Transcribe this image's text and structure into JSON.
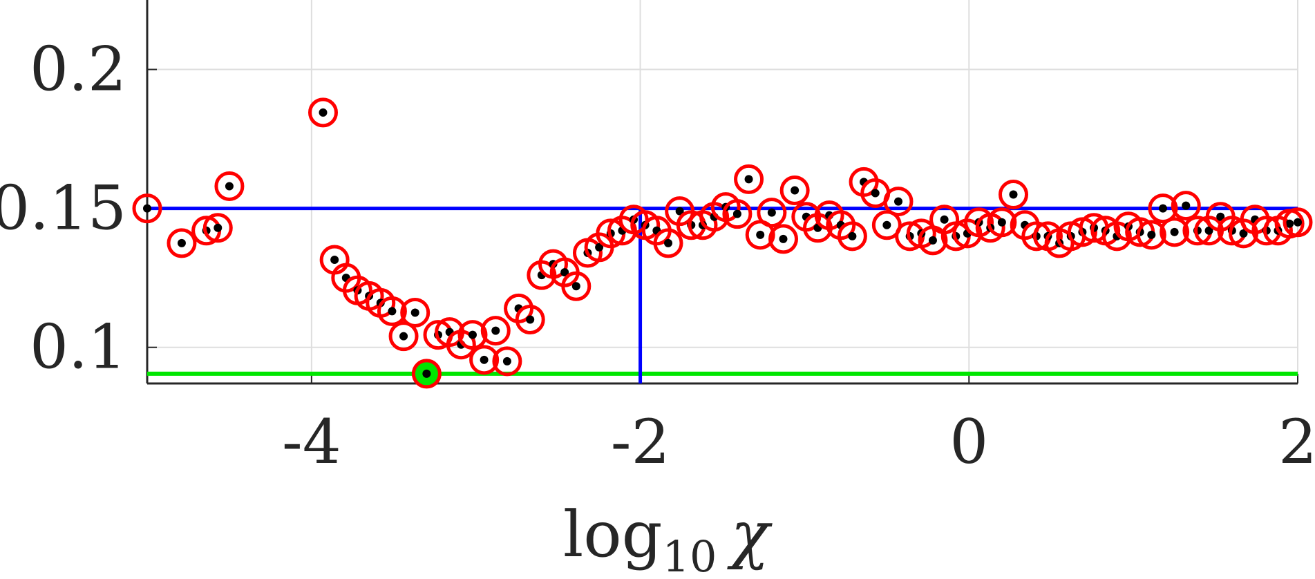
{
  "chart_data": {
    "type": "scatter",
    "xlabel": {
      "base": "log",
      "subscript": "10",
      "variable": "χ"
    },
    "xlim": [
      -5,
      2
    ],
    "ylim": [
      0.087,
      0.225
    ],
    "xticks": [
      -4,
      -2,
      0,
      2
    ],
    "xtick_labels": [
      "-4",
      "-2",
      "0",
      "2"
    ],
    "yticks": [
      0.1,
      0.15,
      0.2
    ],
    "ytick_labels": [
      "0.1",
      "0.15",
      "0.2"
    ],
    "grid": true,
    "reference_lines": {
      "blue_horizontal_y": 0.15,
      "blue_vertical_x": -2,
      "green_horizontal_y": 0.0905
    },
    "highlighted_minimum": {
      "x": -3.3,
      "y": 0.0905
    },
    "colors": {
      "marker_ring": "#ff0000",
      "marker_dot": "#000000",
      "blue_line": "#0000ff",
      "green_line": "#00e600",
      "minimum_fill": "#00e600",
      "grid": "#dedede",
      "axis": "#262626"
    },
    "points": [
      [
        -5.0,
        0.15
      ],
      [
        -4.79,
        0.1375
      ],
      [
        -4.64,
        0.142
      ],
      [
        -4.57,
        0.143
      ],
      [
        -4.5,
        0.158
      ],
      [
        -3.93,
        0.1845
      ],
      [
        -3.86,
        0.1315
      ],
      [
        -3.79,
        0.125
      ],
      [
        -3.72,
        0.1205
      ],
      [
        -3.65,
        0.1185
      ],
      [
        -3.58,
        0.116
      ],
      [
        -3.51,
        0.113
      ],
      [
        -3.44,
        0.104
      ],
      [
        -3.37,
        0.1125
      ],
      [
        -3.3,
        0.0905
      ],
      [
        -3.23,
        0.1045
      ],
      [
        -3.16,
        0.1055
      ],
      [
        -3.09,
        0.101
      ],
      [
        -3.02,
        0.1045
      ],
      [
        -2.95,
        0.0955
      ],
      [
        -2.88,
        0.106
      ],
      [
        -2.81,
        0.095
      ],
      [
        -2.74,
        0.114
      ],
      [
        -2.67,
        0.11
      ],
      [
        -2.6,
        0.126
      ],
      [
        -2.53,
        0.13
      ],
      [
        -2.46,
        0.127
      ],
      [
        -2.39,
        0.122
      ],
      [
        -2.32,
        0.134
      ],
      [
        -2.25,
        0.136
      ],
      [
        -2.18,
        0.141
      ],
      [
        -2.11,
        0.142
      ],
      [
        -2.04,
        0.146
      ],
      [
        -1.97,
        0.144
      ],
      [
        -1.9,
        0.142
      ],
      [
        -1.83,
        0.1375
      ],
      [
        -1.76,
        0.149
      ],
      [
        -1.69,
        0.144
      ],
      [
        -1.62,
        0.144
      ],
      [
        -1.55,
        0.147
      ],
      [
        -1.48,
        0.1505
      ],
      [
        -1.41,
        0.148
      ],
      [
        -1.34,
        0.1605
      ],
      [
        -1.27,
        0.1405
      ],
      [
        -1.2,
        0.1485
      ],
      [
        -1.13,
        0.139
      ],
      [
        -1.06,
        0.1565
      ],
      [
        -0.99,
        0.147
      ],
      [
        -0.92,
        0.143
      ],
      [
        -0.85,
        0.1475
      ],
      [
        -0.78,
        0.144
      ],
      [
        -0.71,
        0.14
      ],
      [
        -0.64,
        0.1595
      ],
      [
        -0.57,
        0.1555
      ],
      [
        -0.5,
        0.144
      ],
      [
        -0.43,
        0.1525
      ],
      [
        -0.36,
        0.14
      ],
      [
        -0.29,
        0.141
      ],
      [
        -0.22,
        0.1385
      ],
      [
        -0.15,
        0.146
      ],
      [
        -0.08,
        0.14
      ],
      [
        -0.01,
        0.141
      ],
      [
        0.06,
        0.145
      ],
      [
        0.13,
        0.143
      ],
      [
        0.2,
        0.145
      ],
      [
        0.27,
        0.155
      ],
      [
        0.34,
        0.144
      ],
      [
        0.41,
        0.14
      ],
      [
        0.48,
        0.14
      ],
      [
        0.55,
        0.1375
      ],
      [
        0.62,
        0.14
      ],
      [
        0.69,
        0.1415
      ],
      [
        0.76,
        0.143
      ],
      [
        0.83,
        0.142
      ],
      [
        0.9,
        0.14
      ],
      [
        0.97,
        0.1435
      ],
      [
        1.04,
        0.1415
      ],
      [
        1.11,
        0.1405
      ],
      [
        1.18,
        0.15
      ],
      [
        1.25,
        0.1415
      ],
      [
        1.32,
        0.151
      ],
      [
        1.39,
        0.142
      ],
      [
        1.46,
        0.142
      ],
      [
        1.53,
        0.147
      ],
      [
        1.6,
        0.142
      ],
      [
        1.67,
        0.141
      ],
      [
        1.74,
        0.146
      ],
      [
        1.81,
        0.142
      ],
      [
        1.88,
        0.142
      ],
      [
        1.95,
        0.1445
      ],
      [
        2.0,
        0.145
      ]
    ]
  }
}
